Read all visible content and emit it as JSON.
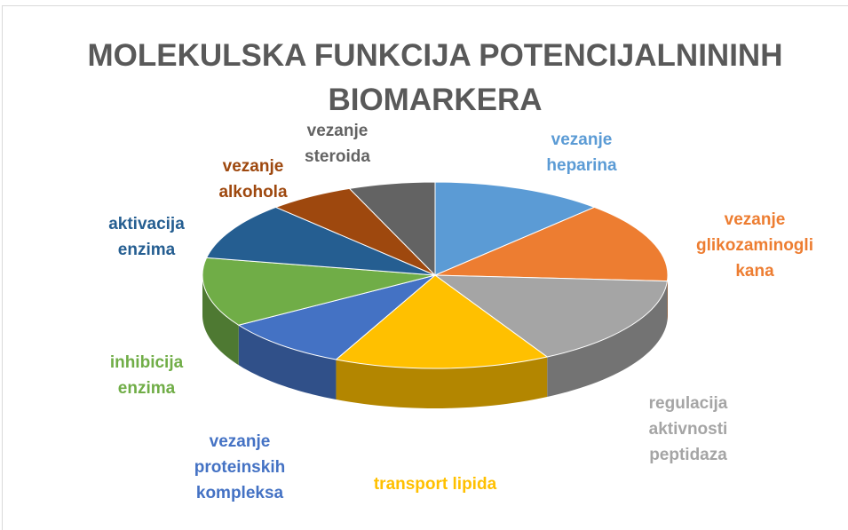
{
  "chart_data": {
    "type": "pie3d",
    "title": "MOLEKULSKA FUNKCIJA POTENCIJALNININH BIOMARKERA",
    "categories": [
      "vezanje heparina",
      "vezanje glikozaminoglikana",
      "regulacija aktivnosti peptidaza",
      "transport lipida",
      "vezanje proteinskih kompleksa",
      "inhibicija enzima",
      "aktivacija enzima",
      "vezanje alkohola",
      "vezanje steroida"
    ],
    "values": [
      12,
      14,
      16,
      15,
      9,
      12,
      10,
      6,
      6
    ],
    "colors": [
      "#5b9bd5",
      "#ed7d31",
      "#a5a5a5",
      "#ffc000",
      "#4472c4",
      "#70ad47",
      "#255e91",
      "#9e480e",
      "#636363"
    ]
  }
}
